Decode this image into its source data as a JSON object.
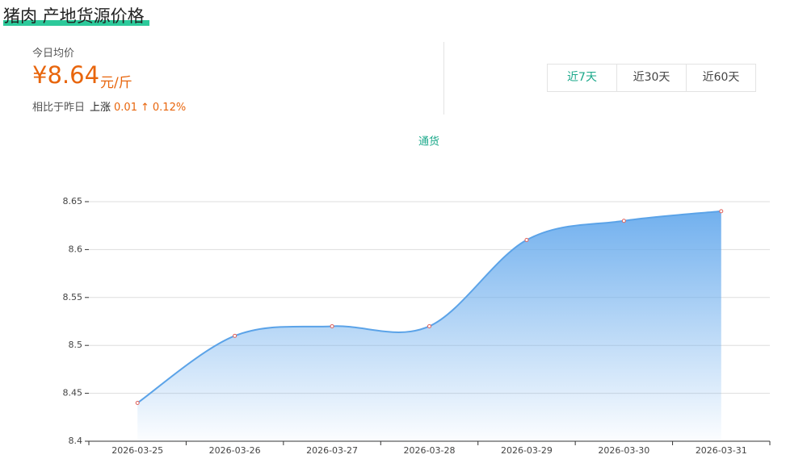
{
  "header": {
    "title": "猪肉 产地货源价格"
  },
  "summary": {
    "label": "今日均价",
    "price": "¥8.64",
    "unit": "元/斤",
    "compare_label": "相比于昨日",
    "trend": "上涨",
    "change": "0.01",
    "arrow": "↑",
    "change_pct": "0.12%"
  },
  "range_tabs": [
    "近7天",
    "近30天",
    "近60天"
  ],
  "chart_data": {
    "type": "line",
    "categories": [
      "2026-03-25",
      "2026-03-26",
      "2026-03-27",
      "2026-03-28",
      "2026-03-29",
      "2026-03-30",
      "2026-03-31"
    ],
    "series": [
      {
        "name": "通货",
        "color": "#5ba3e8",
        "values": [
          8.44,
          8.51,
          8.52,
          8.52,
          8.61,
          8.63,
          8.64
        ]
      }
    ],
    "ylim": [
      8.4,
      8.65
    ],
    "yticks": [
      8.4,
      8.45,
      8.5,
      8.55,
      8.6,
      8.65
    ],
    "grid": true,
    "legend": "top"
  }
}
